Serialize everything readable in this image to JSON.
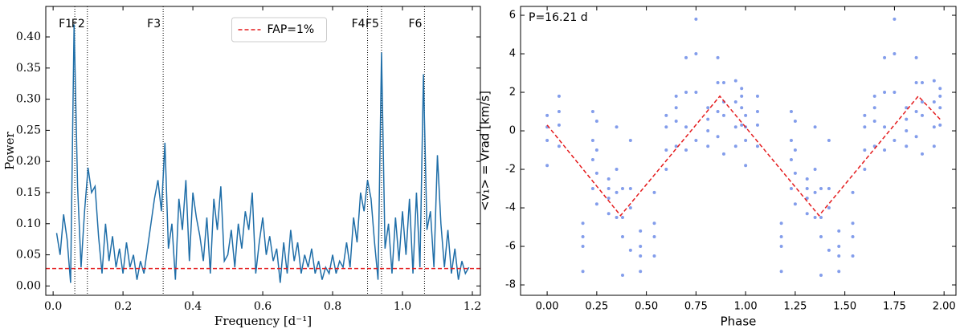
{
  "chart_data": [
    {
      "type": "line",
      "ylabel": "Power",
      "xlabel": "Frequency [d⁻¹]",
      "xlim": [
        -0.021,
        1.223
      ],
      "ylim": [
        -0.015,
        0.449
      ],
      "xticks": [
        {
          "value": 0,
          "label": "0.0"
        },
        0.2,
        0.4,
        0.6,
        0.8,
        {
          "value": 1,
          "label": "1.0"
        },
        1.2
      ],
      "yticks": [
        {
          "value": 0,
          "label": "0.00"
        },
        0.05,
        {
          "value": 0.1,
          "label": "0.10"
        },
        0.15,
        {
          "value": 0.2,
          "label": "0.20"
        },
        0.25,
        {
          "value": 0.3,
          "label": "0.30"
        },
        0.35,
        {
          "value": 0.4,
          "label": "0.40"
        }
      ],
      "series": [
        {
          "color": "#1f6ea8",
          "x": [
            0.01,
            0.02,
            0.03,
            0.04,
            0.05,
            0.06,
            0.07,
            0.08,
            0.09,
            0.1,
            0.11,
            0.12,
            0.13,
            0.14,
            0.15,
            0.16,
            0.17,
            0.18,
            0.19,
            0.2,
            0.21,
            0.22,
            0.23,
            0.24,
            0.25,
            0.26,
            0.27,
            0.28,
            0.29,
            0.3,
            0.31,
            0.32,
            0.33,
            0.34,
            0.35,
            0.36,
            0.37,
            0.38,
            0.39,
            0.4,
            0.41,
            0.42,
            0.43,
            0.44,
            0.45,
            0.46,
            0.47,
            0.48,
            0.49,
            0.5,
            0.51,
            0.52,
            0.53,
            0.54,
            0.55,
            0.56,
            0.57,
            0.58,
            0.59,
            0.6,
            0.61,
            0.62,
            0.63,
            0.64,
            0.65,
            0.66,
            0.67,
            0.68,
            0.69,
            0.7,
            0.71,
            0.72,
            0.73,
            0.74,
            0.75,
            0.76,
            0.77,
            0.78,
            0.79,
            0.8,
            0.81,
            0.82,
            0.83,
            0.84,
            0.85,
            0.86,
            0.87,
            0.88,
            0.89,
            0.9,
            0.91,
            0.92,
            0.93,
            0.94,
            0.95,
            0.96,
            0.97,
            0.98,
            0.99,
            1.0,
            1.01,
            1.02,
            1.03,
            1.04,
            1.05,
            1.06,
            1.07,
            1.08,
            1.09,
            1.1,
            1.11,
            1.12,
            1.13,
            1.14,
            1.15,
            1.16,
            1.17,
            1.18,
            1.19
          ],
          "values": [
            0.085,
            0.05,
            0.115,
            0.075,
            0.005,
            0.42,
            0.16,
            0.03,
            0.12,
            0.19,
            0.15,
            0.16,
            0.08,
            0.02,
            0.1,
            0.04,
            0.08,
            0.03,
            0.06,
            0.02,
            0.07,
            0.03,
            0.05,
            0.01,
            0.04,
            0.02,
            0.06,
            0.1,
            0.14,
            0.17,
            0.12,
            0.23,
            0.06,
            0.1,
            0.01,
            0.14,
            0.09,
            0.17,
            0.04,
            0.15,
            0.11,
            0.08,
            0.04,
            0.11,
            0.02,
            0.14,
            0.09,
            0.16,
            0.04,
            0.05,
            0.09,
            0.03,
            0.1,
            0.06,
            0.12,
            0.09,
            0.15,
            0.02,
            0.07,
            0.11,
            0.05,
            0.08,
            0.04,
            0.06,
            0.005,
            0.07,
            0.02,
            0.09,
            0.04,
            0.07,
            0.02,
            0.05,
            0.03,
            0.06,
            0.02,
            0.04,
            0.01,
            0.03,
            0.02,
            0.05,
            0.02,
            0.04,
            0.03,
            0.07,
            0.03,
            0.11,
            0.07,
            0.15,
            0.12,
            0.17,
            0.14,
            0.07,
            0.01,
            0.375,
            0.06,
            0.1,
            0.02,
            0.11,
            0.04,
            0.12,
            0.05,
            0.14,
            0.02,
            0.15,
            0.03,
            0.34,
            0.09,
            0.12,
            0.03,
            0.21,
            0.1,
            0.03,
            0.09,
            0.02,
            0.06,
            0.01,
            0.04,
            0.02,
            0.03
          ]
        }
      ],
      "hlines": [
        {
          "y": 0.028,
          "name": "FAP=1%",
          "color": "#e41a1c"
        }
      ],
      "legend": "upper center",
      "vlines": [
        {
          "x": 0.062,
          "label": "F1"
        },
        {
          "x": 0.098,
          "label": "F2"
        },
        {
          "x": 0.315,
          "label": "F3"
        },
        {
          "x": 0.9,
          "label": "F4"
        },
        {
          "x": 0.94,
          "label": "F5"
        },
        {
          "x": 1.063,
          "label": "F6"
        }
      ]
    },
    {
      "type": "scatter",
      "ylabel": "<v₁> = Vrad [km/s]",
      "xlabel": "Phase",
      "annotation": "P=16.21 d",
      "xlim": [
        -0.134,
        2.06
      ],
      "ylim": [
        -8.54,
        6.46
      ],
      "xticks": [
        {
          "value": 0,
          "label": "0.00"
        },
        0.25,
        {
          "value": 0.5,
          "label": "0.50"
        },
        0.75,
        {
          "value": 1,
          "label": "1.00"
        },
        1.25,
        {
          "value": 1.5,
          "label": "1.50"
        },
        1.75,
        {
          "value": 2,
          "label": "2.00"
        }
      ],
      "yticks": [
        -8,
        -6,
        -4,
        -2,
        0,
        2,
        4,
        6
      ],
      "series": [
        {
          "type": "scatter",
          "color": "#4169e1",
          "x": [
            0,
            0,
            0,
            0,
            0.06,
            0.06,
            0.06,
            0.06,
            0.18,
            0.18,
            0.18,
            0.18,
            0.23,
            0.23,
            0.23,
            0.23,
            0.25,
            0.25,
            0.25,
            0.25,
            0.31,
            0.31,
            0.31,
            0.31,
            0.35,
            0.35,
            0.35,
            0.35,
            0.38,
            0.38,
            0.38,
            0.38,
            0.42,
            0.42,
            0.42,
            0.42,
            0.47,
            0.47,
            0.47,
            0.47,
            0.54,
            0.54,
            0.54,
            0.54,
            0.6,
            0.6,
            0.6,
            0.6,
            0.65,
            0.65,
            0.65,
            0.65,
            0.7,
            0.7,
            0.7,
            0.7,
            0.75,
            0.75,
            0.75,
            0.75,
            0.81,
            0.81,
            0.81,
            0.81,
            0.86,
            0.86,
            0.86,
            0.86,
            0.89,
            0.89,
            0.89,
            0.89,
            0.95,
            0.95,
            0.95,
            0.95,
            0.98,
            0.98,
            0.98,
            0.98,
            1,
            1,
            1,
            1,
            1.06,
            1.06,
            1.06,
            1.06,
            1.18,
            1.18,
            1.18,
            1.18,
            1.23,
            1.23,
            1.23,
            1.23,
            1.25,
            1.25,
            1.25,
            1.25,
            1.31,
            1.31,
            1.31,
            1.31,
            1.35,
            1.35,
            1.35,
            1.35,
            1.38,
            1.38,
            1.38,
            1.38,
            1.42,
            1.42,
            1.42,
            1.42,
            1.47,
            1.47,
            1.47,
            1.47,
            1.54,
            1.54,
            1.54,
            1.54,
            1.6,
            1.6,
            1.6,
            1.6,
            1.65,
            1.65,
            1.65,
            1.65,
            1.7,
            1.7,
            1.7,
            1.7,
            1.75,
            1.75,
            1.75,
            1.75,
            1.81,
            1.81,
            1.81,
            1.81,
            1.86,
            1.86,
            1.86,
            1.86,
            1.89,
            1.89,
            1.89,
            1.89,
            1.95,
            1.95,
            1.95,
            1.95,
            1.98,
            1.98,
            1.98,
            1.98
          ],
          "values": [
            0.8,
            -0.5,
            -1.8,
            0.2,
            1.8,
            0.3,
            -0.8,
            1.0,
            -4.8,
            -6.0,
            -7.3,
            -5.5,
            1.0,
            -1.5,
            -3.0,
            -0.5,
            -2.2,
            0.5,
            -3.8,
            -1.0,
            -2.5,
            -3.5,
            -4.3,
            -3.0,
            0.2,
            -2.0,
            -4.5,
            -3.2,
            -3.0,
            -5.5,
            -7.5,
            -4.5,
            -0.5,
            -3.0,
            -6.2,
            -4.0,
            -5.2,
            -6.5,
            -7.3,
            -6.0,
            -3.2,
            -4.8,
            -6.5,
            -5.5,
            0.8,
            -1.0,
            -2.0,
            0.2,
            1.8,
            0.5,
            -0.8,
            1.2,
            3.8,
            2.0,
            0.2,
            -1.0,
            5.8,
            4.0,
            2.0,
            -0.5,
            1.2,
            0.0,
            -0.8,
            0.6,
            3.8,
            2.5,
            1.0,
            -0.3,
            2.5,
            0.8,
            -1.2,
            1.5,
            2.6,
            1.5,
            0.2,
            -0.8,
            2.2,
            1.2,
            0.3,
            1.8,
            0.8,
            -0.5,
            -1.8,
            0.2,
            1.8,
            0.3,
            -0.8,
            1.0,
            -4.8,
            -6.0,
            -7.3,
            -5.5,
            1.0,
            -1.5,
            -3.0,
            -0.5,
            -2.2,
            0.5,
            -3.8,
            -1.0,
            -2.5,
            -3.5,
            -4.3,
            -3.0,
            0.2,
            -2.0,
            -4.5,
            -3.2,
            -3.0,
            -5.5,
            -7.5,
            -4.5,
            -0.5,
            -3.0,
            -6.2,
            -4.0,
            -5.2,
            -6.5,
            -7.3,
            -6.0,
            -3.2,
            -4.8,
            -6.5,
            -5.5,
            0.8,
            -1.0,
            -2.0,
            0.2,
            1.8,
            0.5,
            -0.8,
            1.2,
            3.8,
            2.0,
            0.2,
            -1.0,
            5.8,
            4.0,
            2.0,
            -0.5,
            1.2,
            0.0,
            -0.8,
            0.6,
            3.8,
            2.5,
            1.0,
            -0.3,
            2.5,
            0.8,
            -1.2,
            1.5,
            2.6,
            1.5,
            0.2,
            -0.8,
            2.2,
            1.2,
            0.3,
            1.8
          ]
        },
        {
          "type": "line",
          "color": "#e41a1c",
          "dashed": true,
          "x": [
            0,
            0.37,
            0.87,
            1.37,
            1.87,
            1.98
          ],
          "values": [
            0.3,
            -4.4,
            1.8,
            -4.4,
            1.8,
            0.6
          ]
        }
      ]
    }
  ]
}
